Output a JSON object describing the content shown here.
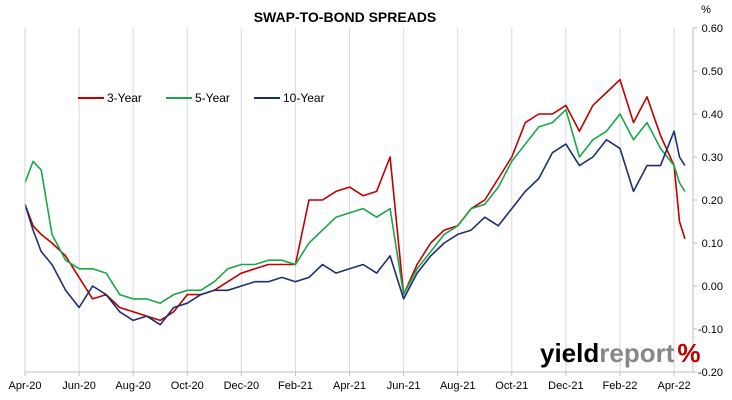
{
  "chart_data": {
    "type": "line",
    "title": "SWAP-TO-BOND SPREADS",
    "y_unit": "%",
    "ylim": [
      -0.2,
      0.6
    ],
    "y_ticks": [
      "-0.20",
      "-0.10",
      "0.00",
      "0.10",
      "0.20",
      "0.30",
      "0.40",
      "0.50",
      "0.60"
    ],
    "x_ticks": [
      "Apr-20",
      "Jun-20",
      "Aug-20",
      "Oct-20",
      "Dec-20",
      "Feb-21",
      "Apr-21",
      "Jun-21",
      "Aug-21",
      "Oct-21",
      "Dec-21",
      "Feb-22",
      "Apr-22"
    ],
    "x_range_months": [
      0,
      24.7
    ],
    "grid": "vertical",
    "legend_position": "top-left",
    "series": [
      {
        "name": "3-Year",
        "color": "#c00000",
        "x_months": [
          0,
          0.3,
          0.6,
          1,
          1.5,
          2,
          2.5,
          3,
          3.5,
          4,
          4.5,
          5,
          5.5,
          6,
          6.5,
          7,
          7.5,
          8,
          8.5,
          9,
          9.5,
          10,
          10.5,
          11,
          11.5,
          12,
          12.5,
          13,
          13.5,
          14,
          14.5,
          15,
          15.5,
          16,
          16.5,
          17,
          17.5,
          18,
          18.5,
          19,
          19.5,
          20,
          20.5,
          21,
          21.5,
          22,
          22.5,
          23,
          23.5,
          24,
          24.2,
          24.4
        ],
        "values": [
          0.19,
          0.14,
          0.12,
          0.1,
          0.07,
          0.02,
          -0.03,
          -0.02,
          -0.05,
          -0.06,
          -0.07,
          -0.08,
          -0.06,
          -0.02,
          -0.02,
          -0.01,
          0.01,
          0.03,
          0.04,
          0.05,
          0.05,
          0.05,
          0.2,
          0.2,
          0.22,
          0.23,
          0.21,
          0.22,
          0.3,
          -0.02,
          0.05,
          0.1,
          0.13,
          0.14,
          0.18,
          0.2,
          0.25,
          0.3,
          0.38,
          0.4,
          0.4,
          0.42,
          0.36,
          0.42,
          0.45,
          0.48,
          0.38,
          0.44,
          0.35,
          0.28,
          0.15,
          0.11
        ]
      },
      {
        "name": "5-Year",
        "color": "#1aa64a",
        "x_months": [
          0,
          0.3,
          0.6,
          1,
          1.5,
          2,
          2.5,
          3,
          3.5,
          4,
          4.5,
          5,
          5.5,
          6,
          6.5,
          7,
          7.5,
          8,
          8.5,
          9,
          9.5,
          10,
          10.5,
          11,
          11.5,
          12,
          12.5,
          13,
          13.5,
          14,
          14.5,
          15,
          15.5,
          16,
          16.5,
          17,
          17.5,
          18,
          18.5,
          19,
          19.5,
          20,
          20.5,
          21,
          21.5,
          22,
          22.5,
          23,
          23.5,
          24,
          24.2,
          24.4
        ],
        "values": [
          0.24,
          0.29,
          0.27,
          0.12,
          0.06,
          0.04,
          0.04,
          0.03,
          -0.02,
          -0.03,
          -0.03,
          -0.04,
          -0.02,
          -0.01,
          -0.01,
          0.01,
          0.04,
          0.05,
          0.05,
          0.06,
          0.06,
          0.05,
          0.1,
          0.13,
          0.16,
          0.17,
          0.18,
          0.16,
          0.18,
          -0.02,
          0.04,
          0.08,
          0.12,
          0.14,
          0.18,
          0.19,
          0.23,
          0.29,
          0.33,
          0.37,
          0.38,
          0.41,
          0.3,
          0.34,
          0.36,
          0.4,
          0.34,
          0.38,
          0.32,
          0.28,
          0.24,
          0.22
        ]
      },
      {
        "name": "10-Year",
        "color": "#1f2f6e",
        "x_months": [
          0,
          0.3,
          0.6,
          1,
          1.5,
          2,
          2.5,
          3,
          3.5,
          4,
          4.5,
          5,
          5.5,
          6,
          6.5,
          7,
          7.5,
          8,
          8.5,
          9,
          9.5,
          10,
          10.5,
          11,
          11.5,
          12,
          12.5,
          13,
          13.5,
          14,
          14.5,
          15,
          15.5,
          16,
          16.5,
          17,
          17.5,
          18,
          18.5,
          19,
          19.5,
          20,
          20.5,
          21,
          21.5,
          22,
          22.5,
          23,
          23.5,
          24,
          24.2,
          24.4
        ],
        "values": [
          0.19,
          0.13,
          0.08,
          0.05,
          -0.01,
          -0.05,
          0.0,
          -0.02,
          -0.06,
          -0.08,
          -0.07,
          -0.09,
          -0.05,
          -0.04,
          -0.02,
          -0.01,
          -0.01,
          0.0,
          0.01,
          0.01,
          0.02,
          0.01,
          0.02,
          0.05,
          0.03,
          0.04,
          0.05,
          0.03,
          0.07,
          -0.03,
          0.03,
          0.07,
          0.1,
          0.12,
          0.13,
          0.16,
          0.14,
          0.18,
          0.22,
          0.25,
          0.31,
          0.33,
          0.28,
          0.3,
          0.34,
          0.32,
          0.22,
          0.28,
          0.28,
          0.36,
          0.3,
          0.28
        ]
      }
    ]
  },
  "watermark": {
    "text_a": "yield",
    "text_b": "report",
    "symbol": "%",
    "color_a": "#000000",
    "color_b": "#888888",
    "symbol_color": "#c00000"
  }
}
